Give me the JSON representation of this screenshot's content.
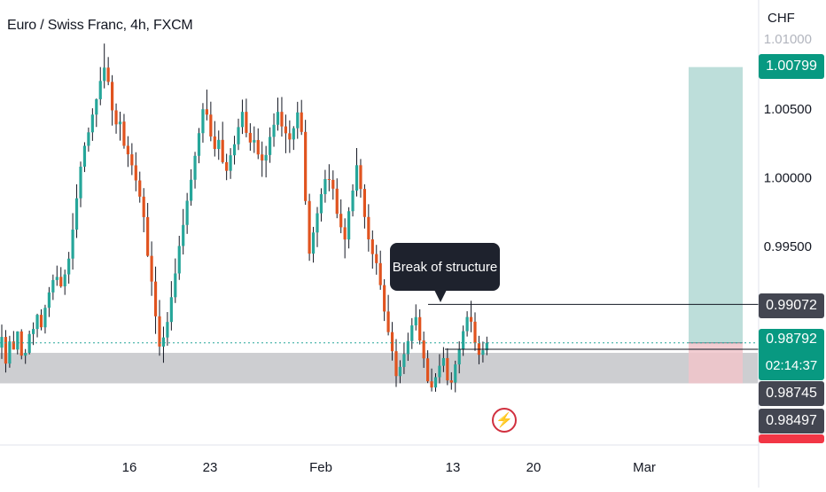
{
  "header": {
    "title": "Euro / Swiss Franc, 4h, FXCM",
    "currency": "CHF"
  },
  "annotation": {
    "label": "Break of structure"
  },
  "price_tags": {
    "target": "1.00799",
    "structure": "0.99072",
    "current": "0.98792",
    "countdown": "02:14:37",
    "low": "0.98745",
    "stop": "0.98497"
  },
  "colors": {
    "up": "#26a69a",
    "down": "#e0531f",
    "wick": "#131722",
    "target_zone": "#b2d8d4",
    "stop_zone": "#f0c4ca",
    "support_zone": "#c8c9cc",
    "current_line": "#26a69a",
    "tag_dark": "#434651",
    "tag_green": "#089981",
    "tag_red": "#f23645"
  },
  "icons": {
    "alert": "lightning-bolt-icon"
  },
  "chart_data": {
    "type": "candlestick",
    "title": "Euro / Swiss Franc, 4h, FXCM",
    "ylabel": "CHF",
    "ylim": [
      0.9825,
      1.012
    ],
    "yticks": [
      1.005,
      1.0,
      0.995
    ],
    "x_tick_labels": [
      "16",
      "23",
      "Feb",
      "13",
      "20",
      "Mar"
    ],
    "grid": false,
    "series": [
      {
        "name": "",
        "points": [
          [
            0.98757,
            0.98925,
            0.98675,
            0.98835
          ],
          [
            0.98835,
            0.98885,
            0.98576,
            0.98641
          ],
          [
            0.98641,
            0.98843,
            0.98611,
            0.98802
          ],
          [
            0.98802,
            0.98878,
            0.98744,
            0.98743
          ],
          [
            0.98743,
            0.98876,
            0.98708,
            0.98875
          ],
          [
            0.98875,
            0.98891,
            0.98672,
            0.98699
          ],
          [
            0.98699,
            0.98747,
            0.98639,
            0.98719
          ],
          [
            0.98719,
            0.98881,
            0.98708,
            0.98856
          ],
          [
            0.98856,
            0.98941,
            0.98776,
            0.98893
          ],
          [
            0.98893,
            0.99004,
            0.98832,
            0.98996
          ],
          [
            0.98996,
            0.99036,
            0.98883,
            0.98905
          ],
          [
            0.98905,
            0.99069,
            0.9886,
            0.99047
          ],
          [
            0.99047,
            0.99198,
            0.9898,
            0.99159
          ],
          [
            0.99159,
            0.99289,
            0.99104,
            0.99249
          ],
          [
            0.99249,
            0.99354,
            0.99207,
            0.99272
          ],
          [
            0.99272,
            0.99343,
            0.99193,
            0.99203
          ],
          [
            0.99203,
            0.99325,
            0.99141,
            0.9929
          ],
          [
            0.9929,
            0.99454,
            0.99223,
            0.99405
          ],
          [
            0.99405,
            0.99736,
            0.99325,
            0.99616
          ],
          [
            0.99616,
            0.99946,
            0.99555,
            0.99844
          ],
          [
            0.99844,
            1.00111,
            0.99779,
            1.00074
          ],
          [
            1.00074,
            1.00252,
            1.00035,
            1.00226
          ],
          [
            1.00226,
            1.00359,
            1.00183,
            1.00324
          ],
          [
            1.00324,
            1.00499,
            1.00262,
            1.00453
          ],
          [
            1.00453,
            1.0057,
            1.00363,
            1.00565
          ],
          [
            1.00565,
            1.00799,
            1.00521,
            1.00698
          ],
          [
            1.00698,
            1.0097,
            1.00644,
            1.00795
          ],
          [
            1.00795,
            1.00872,
            1.00667,
            1.00691
          ],
          [
            1.00691,
            1.0074,
            1.00373,
            1.00484
          ],
          [
            1.00484,
            1.00534,
            1.00314,
            1.00382
          ],
          [
            1.00382,
            1.00474,
            1.00264,
            1.00402
          ],
          [
            1.00402,
            1.00458,
            1.00205,
            1.00226
          ],
          [
            1.00226,
            1.00296,
            1.00072,
            1.00164
          ],
          [
            1.00164,
            1.00245,
            1.00013,
            1.00084
          ],
          [
            1.00084,
            1.00179,
            0.99895,
            0.99974
          ],
          [
            0.99974,
            1.00038,
            0.99812,
            0.99856
          ],
          [
            0.99856,
            0.99918,
            0.99597,
            0.99707
          ],
          [
            0.99707,
            0.9981,
            0.99417,
            0.99425
          ],
          [
            0.99425,
            0.9953,
            0.99134,
            0.99238
          ],
          [
            0.99238,
            0.99347,
            0.98857,
            0.98985
          ],
          [
            0.98985,
            0.99104,
            0.98698,
            0.98765
          ],
          [
            0.98765,
            0.9891,
            0.98647,
            0.98831
          ],
          [
            0.98831,
            0.99016,
            0.98771,
            0.98944
          ],
          [
            0.98944,
            0.99241,
            0.98882,
            0.99124
          ],
          [
            0.99124,
            0.99406,
            0.99082,
            0.99297
          ],
          [
            0.99297,
            0.99571,
            0.9925,
            0.99497
          ],
          [
            0.99497,
            0.99766,
            0.99435,
            0.9965
          ],
          [
            0.9965,
            0.99883,
            0.99585,
            0.99826
          ],
          [
            0.99826,
            1.00055,
            0.9979,
            0.99979
          ],
          [
            0.99979,
            1.00182,
            0.99915,
            1.00153
          ],
          [
            1.00153,
            1.00356,
            1.00099,
            1.00318
          ],
          [
            1.00318,
            1.00537,
            1.00249,
            1.00492
          ],
          [
            1.00492,
            1.00635,
            1.00411,
            1.00453
          ],
          [
            1.00453,
            1.00547,
            1.00259,
            1.00294
          ],
          [
            1.00294,
            1.00406,
            1.00148,
            1.00203
          ],
          [
            1.00203,
            1.00337,
            1.00124,
            1.00269
          ],
          [
            1.00269,
            1.00401,
            1.00096,
            1.00107
          ],
          [
            1.00107,
            1.00168,
            0.99976,
            1.00044
          ],
          [
            1.00044,
            1.00209,
            0.99985,
            1.00157
          ],
          [
            1.00157,
            1.00299,
            1.0009,
            1.00237
          ],
          [
            1.00237,
            1.00423,
            1.00195,
            1.00362
          ],
          [
            1.00362,
            1.00562,
            1.00312,
            1.00473
          ],
          [
            1.00473,
            1.00569,
            1.00288,
            1.0032
          ],
          [
            1.0032,
            1.0039,
            1.0019,
            1.0025
          ],
          [
            1.0025,
            1.00367,
            1.00174,
            1.00268
          ],
          [
            1.00268,
            1.00353,
            1.00129,
            1.00163
          ],
          [
            1.00163,
            1.00257,
            1.0,
            1.00119
          ],
          [
            1.00119,
            1.00225,
            0.99996,
            1.00159
          ],
          [
            1.00159,
            1.0036,
            1.00102,
            1.00291
          ],
          [
            1.00291,
            1.00462,
            1.00219,
            1.00379
          ],
          [
            1.00379,
            1.00577,
            1.00336,
            1.00473
          ],
          [
            1.00473,
            1.00581,
            1.00293,
            1.00367
          ],
          [
            1.00367,
            1.00453,
            1.00172,
            1.00317
          ],
          [
            1.00317,
            1.00411,
            1.00174,
            1.00272
          ],
          [
            1.00272,
            1.00369,
            1.00196,
            1.00354
          ],
          [
            1.00354,
            1.00546,
            1.00277,
            1.00469
          ],
          [
            1.00469,
            1.0056,
            1.00305,
            1.00327
          ],
          [
            1.00327,
            1.00415,
            0.99797,
            0.99824
          ],
          [
            0.99824,
            0.99877,
            0.99389,
            0.99441
          ],
          [
            0.99441,
            0.99636,
            0.99376,
            0.99595
          ],
          [
            0.99595,
            0.99781,
            0.99489,
            0.99735
          ],
          [
            0.99735,
            0.99917,
            0.99675,
            0.99874
          ],
          [
            0.99874,
            1.00051,
            0.99812,
            0.99984
          ],
          [
            0.99984,
            1.00092,
            0.99895,
            0.99978
          ],
          [
            0.99978,
            1.00047,
            0.99834,
            0.99914
          ],
          [
            0.99914,
            0.99989,
            0.99699,
            0.99731
          ],
          [
            0.99731,
            0.99836,
            0.9959,
            0.99633
          ],
          [
            0.99633,
            0.99698,
            0.99407,
            0.99544
          ],
          [
            0.99544,
            0.99779,
            0.99479,
            0.9975
          ],
          [
            0.9975,
            0.99946,
            0.99712,
            0.999
          ],
          [
            0.999,
            1.0021,
            0.99857,
            1.00085
          ],
          [
            1.00085,
            1.0013,
            0.99849,
            0.99912
          ],
          [
            0.99912,
            0.99946,
            0.99624,
            0.99708
          ],
          [
            0.99708,
            0.99801,
            0.99456,
            0.99545
          ],
          [
            0.99545,
            0.9961,
            0.99332,
            0.99438
          ],
          [
            0.99438,
            0.99505,
            0.99288,
            0.99372
          ],
          [
            0.99372,
            0.99463,
            0.99178,
            0.99212
          ],
          [
            0.99212,
            0.99255,
            0.98951,
            0.9902
          ],
          [
            0.9902,
            0.99141,
            0.98846,
            0.9887
          ],
          [
            0.9887,
            0.98944,
            0.98663,
            0.98731
          ],
          [
            0.98731,
            0.98819,
            0.98471,
            0.9855
          ],
          [
            0.9855,
            0.98665,
            0.98498,
            0.98617
          ],
          [
            0.98617,
            0.98791,
            0.98565,
            0.9871
          ],
          [
            0.9871,
            0.98866,
            0.98661,
            0.98805
          ],
          [
            0.98805,
            0.98972,
            0.98747,
            0.98919
          ],
          [
            0.98919,
            0.99072,
            0.98882,
            0.98979
          ],
          [
            0.98979,
            0.99036,
            0.9878,
            0.98809
          ],
          [
            0.98809,
            0.98874,
            0.9861,
            0.98679
          ],
          [
            0.98679,
            0.98738,
            0.98499,
            0.98512
          ],
          [
            0.98512,
            0.98605,
            0.98438,
            0.98467
          ],
          [
            0.98467,
            0.98571,
            0.98436,
            0.98542
          ],
          [
            0.98542,
            0.9871,
            0.98497,
            0.98625
          ],
          [
            0.98625,
            0.98761,
            0.98579,
            0.98681
          ],
          [
            0.98681,
            0.98752,
            0.98484,
            0.98519
          ],
          [
            0.98519,
            0.98578,
            0.98451,
            0.98503
          ],
          [
            0.98503,
            0.98662,
            0.98432,
            0.98635
          ],
          [
            0.98635,
            0.98803,
            0.9857,
            0.98744
          ],
          [
            0.98744,
            0.98918,
            0.98697,
            0.98877
          ],
          [
            0.98877,
            0.99022,
            0.98838,
            0.9898
          ],
          [
            0.9898,
            0.99098,
            0.98869,
            0.98946
          ],
          [
            0.98946,
            0.99014,
            0.98734,
            0.98789
          ],
          [
            0.98789,
            0.98843,
            0.98636,
            0.98705
          ],
          [
            0.98705,
            0.98801,
            0.98649,
            0.98738
          ],
          [
            0.98738,
            0.98837,
            0.98702,
            0.98792
          ]
        ]
      }
    ],
    "horizontal_levels": [
      {
        "label": "0.99072",
        "value": 0.99072
      },
      {
        "label": "0.98745",
        "value": 0.98745
      },
      {
        "label": "0.98792",
        "value": 0.98792
      }
    ],
    "support_zone": [
      0.98497,
      0.98745
    ],
    "position": {
      "entry": 0.98792,
      "target": 1.00799,
      "stop": 0.98497
    }
  }
}
